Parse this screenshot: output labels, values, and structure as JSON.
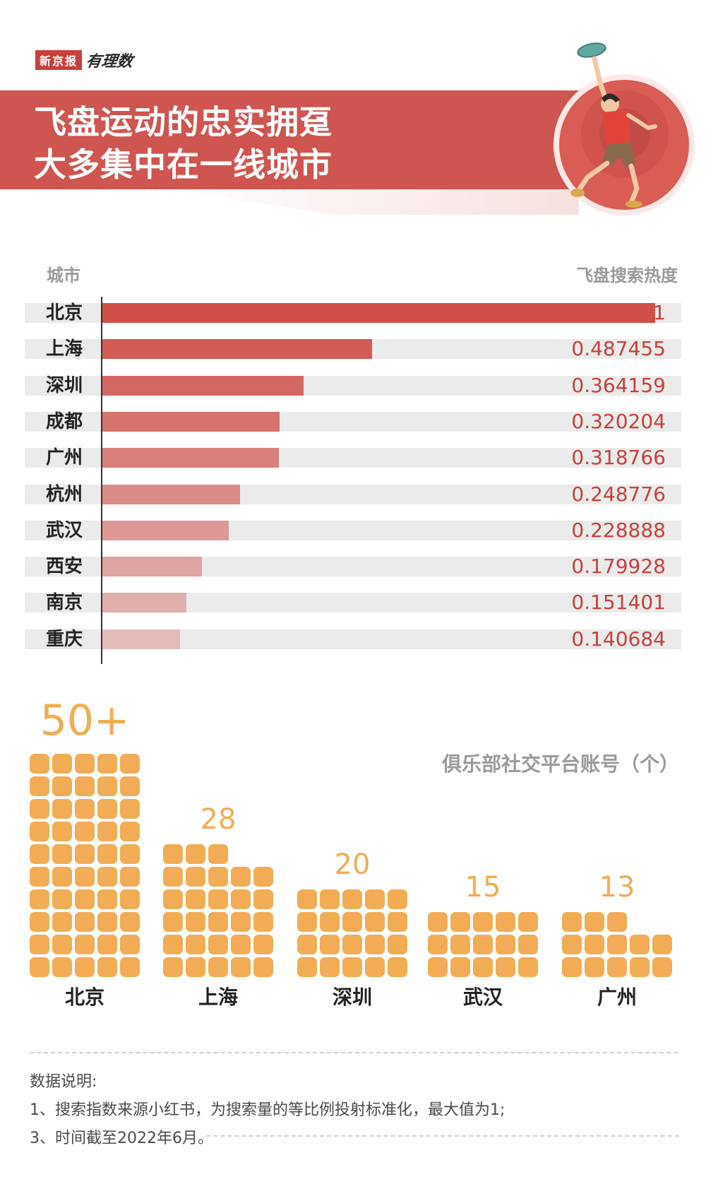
{
  "brand": {
    "name": "新京报",
    "sub": "有理数"
  },
  "title": {
    "line1": "飞盘运动的忠实拥趸",
    "line2": "大多集中在一线城市"
  },
  "colors": {
    "banner": "#cf5550",
    "bar": "#cf4e48",
    "track": "#ebebeb",
    "waffle": "#f2ac55",
    "value": "#c8403b"
  },
  "chart_data": [
    {
      "type": "bar",
      "orientation": "horizontal",
      "category_header": "城市",
      "value_header": "飞盘搜索热度",
      "categories": [
        "北京",
        "上海",
        "深圳",
        "成都",
        "广州",
        "杭州",
        "武汉",
        "西安",
        "南京",
        "重庆"
      ],
      "values": [
        1,
        0.487455,
        0.364159,
        0.320204,
        0.318766,
        0.248776,
        0.228888,
        0.179928,
        0.151401,
        0.140684
      ],
      "value_labels": [
        "1",
        "0.487455",
        "0.364159",
        "0.320204",
        "0.318766",
        "0.248776",
        "0.228888",
        "0.179928",
        "0.151401",
        "0.140684"
      ],
      "xlim": [
        0,
        1
      ]
    },
    {
      "type": "bar",
      "style": "waffle",
      "title": "俱乐部社交平台账号（个）",
      "categories": [
        "北京",
        "上海",
        "深圳",
        "武汉",
        "广州"
      ],
      "values": [
        50,
        28,
        20,
        15,
        13
      ],
      "value_labels": [
        "50+",
        "28",
        "20",
        "15",
        "13"
      ]
    }
  ],
  "notes": {
    "heading": "数据说明:",
    "line1": "1、搜索指数来源小红书，为搜索量的等比例投射标准化，最大值为1;",
    "line3": "3、时间截至2022年6月。"
  }
}
